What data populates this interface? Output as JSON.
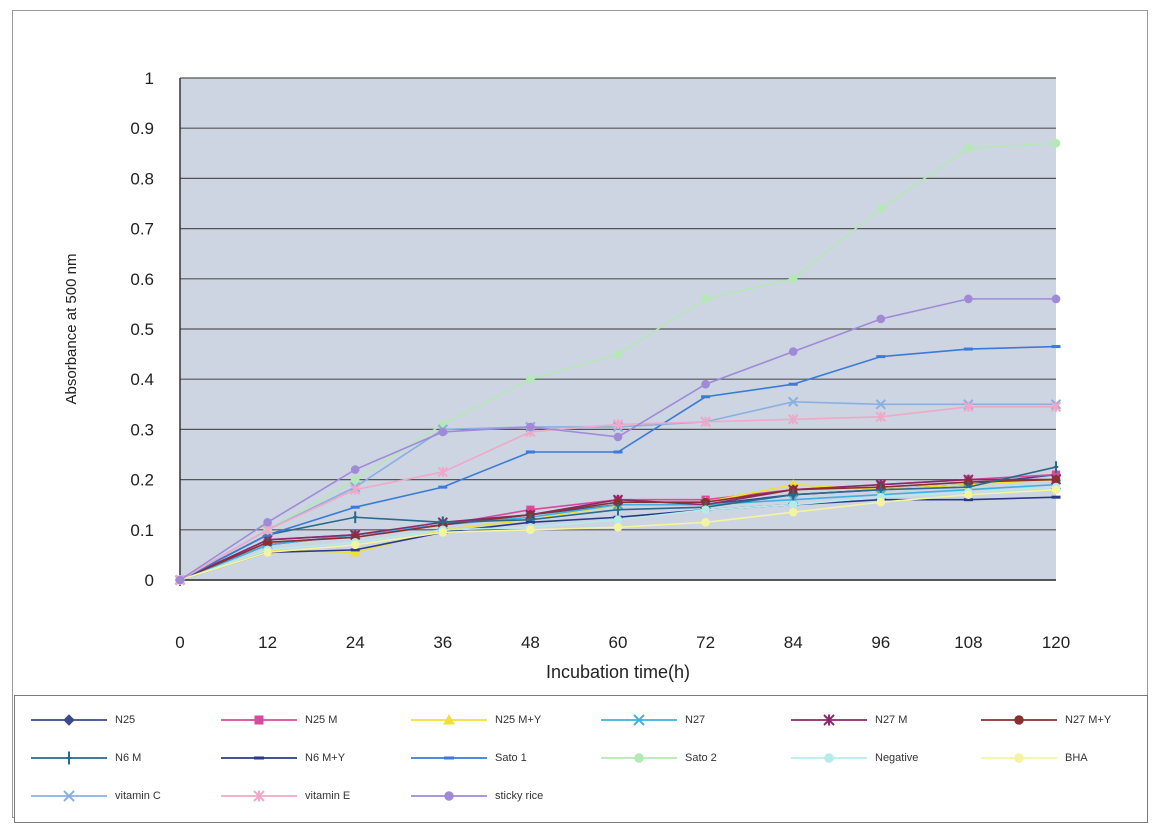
{
  "chart_data": {
    "type": "line",
    "title": "",
    "xlabel": "Incubation time(h)",
    "ylabel": "Absorbance at 500 nm",
    "x": [
      0,
      12,
      24,
      36,
      48,
      60,
      72,
      84,
      96,
      108,
      120
    ],
    "x_tick_labels": [
      "0",
      "12",
      "24",
      "36",
      "48",
      "60",
      "72",
      "84",
      "96",
      "108",
      "120"
    ],
    "y_tick_labels": [
      "0",
      "0.1",
      "0.2",
      "0.3",
      "0.4",
      "0.5",
      "0.6",
      "0.7",
      "0.8",
      "0.9",
      "1"
    ],
    "ylim": [
      0,
      1
    ],
    "grid": true,
    "legend_position": "bottom",
    "plot_background": "#cdd4e2",
    "series": [
      {
        "name": "N25",
        "color": "#3c4a8c",
        "marker": "diamond",
        "values": [
          0,
          0.07,
          0.09,
          0.11,
          0.13,
          0.15,
          0.15,
          0.17,
          0.18,
          0.19,
          0.21
        ]
      },
      {
        "name": "N25 M",
        "color": "#d84a9e",
        "marker": "square",
        "values": [
          0,
          0.08,
          0.09,
          0.11,
          0.14,
          0.16,
          0.16,
          0.18,
          0.19,
          0.2,
          0.21
        ]
      },
      {
        "name": "N25 M+Y",
        "color": "#f0e030",
        "marker": "triangle",
        "values": [
          0,
          0.06,
          0.055,
          0.1,
          0.12,
          0.15,
          0.155,
          0.19,
          0.18,
          0.19,
          0.2
        ]
      },
      {
        "name": "N27",
        "color": "#40b0e0",
        "marker": "x",
        "values": [
          0,
          0.07,
          0.09,
          0.11,
          0.125,
          0.15,
          0.15,
          0.16,
          0.17,
          0.18,
          0.19
        ]
      },
      {
        "name": "N27 M",
        "color": "#8a2a6a",
        "marker": "star",
        "values": [
          0,
          0.08,
          0.09,
          0.115,
          0.13,
          0.16,
          0.15,
          0.18,
          0.19,
          0.2,
          0.2
        ]
      },
      {
        "name": "N27 M+Y",
        "color": "#8a3030",
        "marker": "circle",
        "values": [
          0,
          0.075,
          0.085,
          0.11,
          0.13,
          0.155,
          0.155,
          0.18,
          0.185,
          0.195,
          0.2
        ]
      },
      {
        "name": "N6 M",
        "color": "#2a6a8a",
        "marker": "plus",
        "values": [
          0,
          0.09,
          0.125,
          0.115,
          0.12,
          0.14,
          0.145,
          0.17,
          0.18,
          0.185,
          0.225
        ]
      },
      {
        "name": "N6 M+Y",
        "color": "#2a3a8a",
        "marker": "dash",
        "values": [
          0,
          0.055,
          0.06,
          0.095,
          0.115,
          0.125,
          0.14,
          0.15,
          0.16,
          0.16,
          0.165
        ]
      },
      {
        "name": "Sato 1",
        "color": "#3a7ad8",
        "marker": "dash",
        "values": [
          0,
          0.09,
          0.145,
          0.185,
          0.255,
          0.255,
          0.365,
          0.39,
          0.445,
          0.46,
          0.465
        ]
      },
      {
        "name": "Sato 2",
        "color": "#b4e8b4",
        "marker": "circle",
        "values": [
          0,
          0.1,
          0.2,
          0.31,
          0.4,
          0.45,
          0.56,
          0.6,
          0.74,
          0.86,
          0.87
        ]
      },
      {
        "name": "Negative",
        "color": "#b4ecec",
        "marker": "circle",
        "values": [
          0,
          0.06,
          0.075,
          0.1,
          0.105,
          0.12,
          0.14,
          0.15,
          0.165,
          0.175,
          0.185
        ]
      },
      {
        "name": "BHA",
        "color": "#f4f4a0",
        "marker": "circle",
        "values": [
          0,
          0.055,
          0.07,
          0.095,
          0.1,
          0.105,
          0.115,
          0.135,
          0.155,
          0.17,
          0.18
        ]
      },
      {
        "name": "vitamin C",
        "color": "#8ab0e0",
        "marker": "x",
        "values": [
          0,
          0.1,
          0.185,
          0.3,
          0.305,
          0.305,
          0.315,
          0.355,
          0.35,
          0.35,
          0.35
        ]
      },
      {
        "name": "vitamin E",
        "color": "#f0a8c8",
        "marker": "star",
        "values": [
          0,
          0.1,
          0.18,
          0.215,
          0.295,
          0.31,
          0.315,
          0.32,
          0.325,
          0.345,
          0.345
        ]
      },
      {
        "name": "sticky rice",
        "color": "#a08ad8",
        "marker": "circle",
        "values": [
          0,
          0.115,
          0.22,
          0.295,
          0.305,
          0.285,
          0.39,
          0.455,
          0.52,
          0.56,
          0.56
        ]
      }
    ]
  }
}
